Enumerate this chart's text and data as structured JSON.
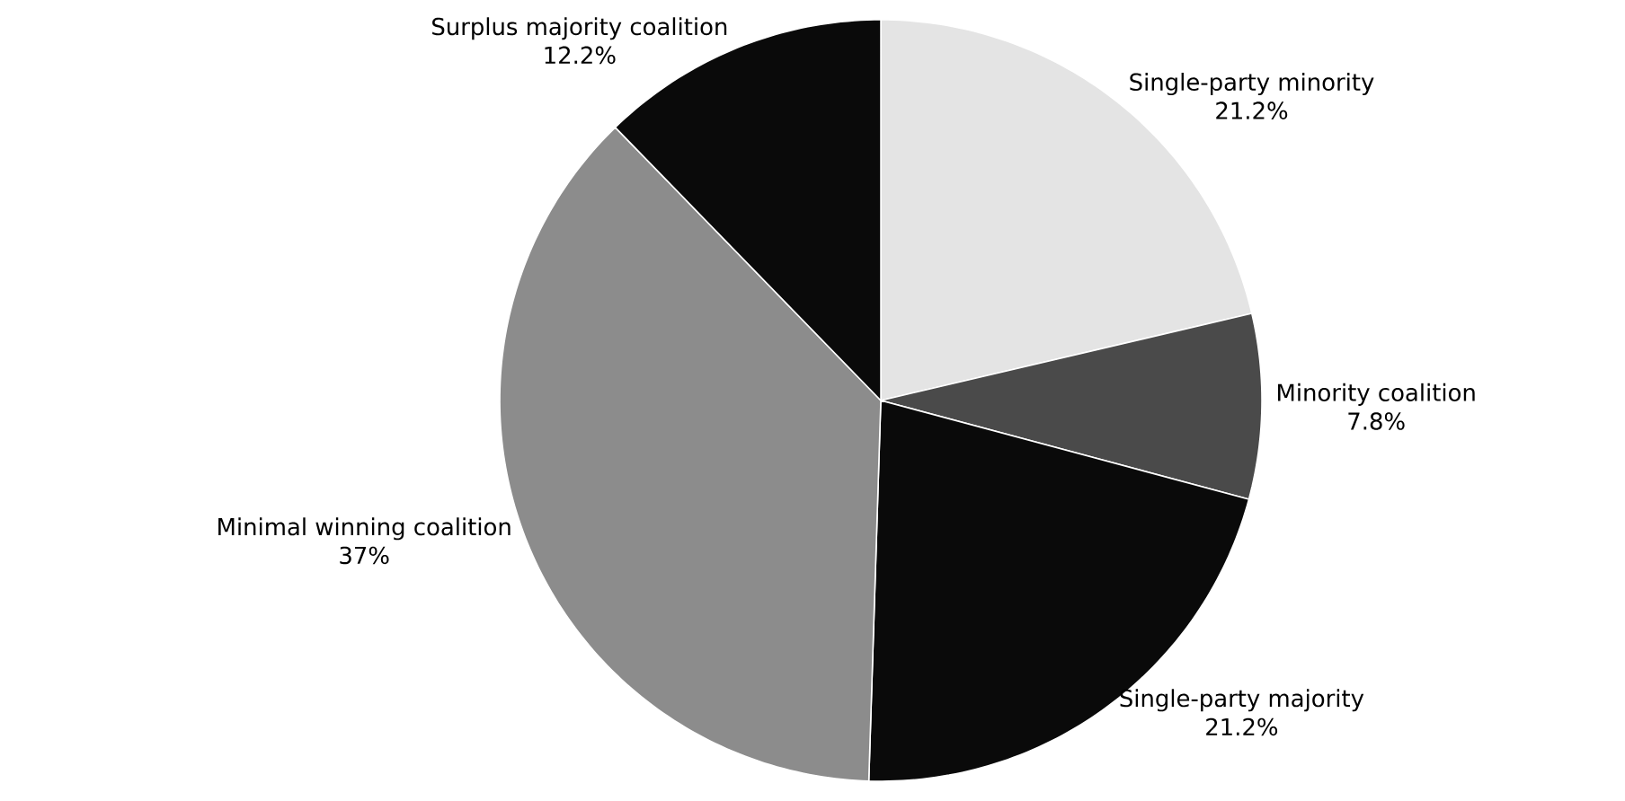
{
  "chart_data": {
    "type": "pie",
    "categories": [
      "Single-party minority",
      "Minority coalition",
      "Single-party majority",
      "Minimal winning coalition",
      "Surplus majority coalition"
    ],
    "values": [
      21.2,
      7.8,
      21.2,
      37,
      12.2
    ],
    "value_labels": [
      "21.2%",
      "7.8%",
      "21.2%",
      "37%",
      "12.2%"
    ],
    "colors": [
      "#e4e4e4",
      "#4a4a4a",
      "#0a0a0a",
      "#8c8c8c",
      "#0a0a0a"
    ]
  }
}
